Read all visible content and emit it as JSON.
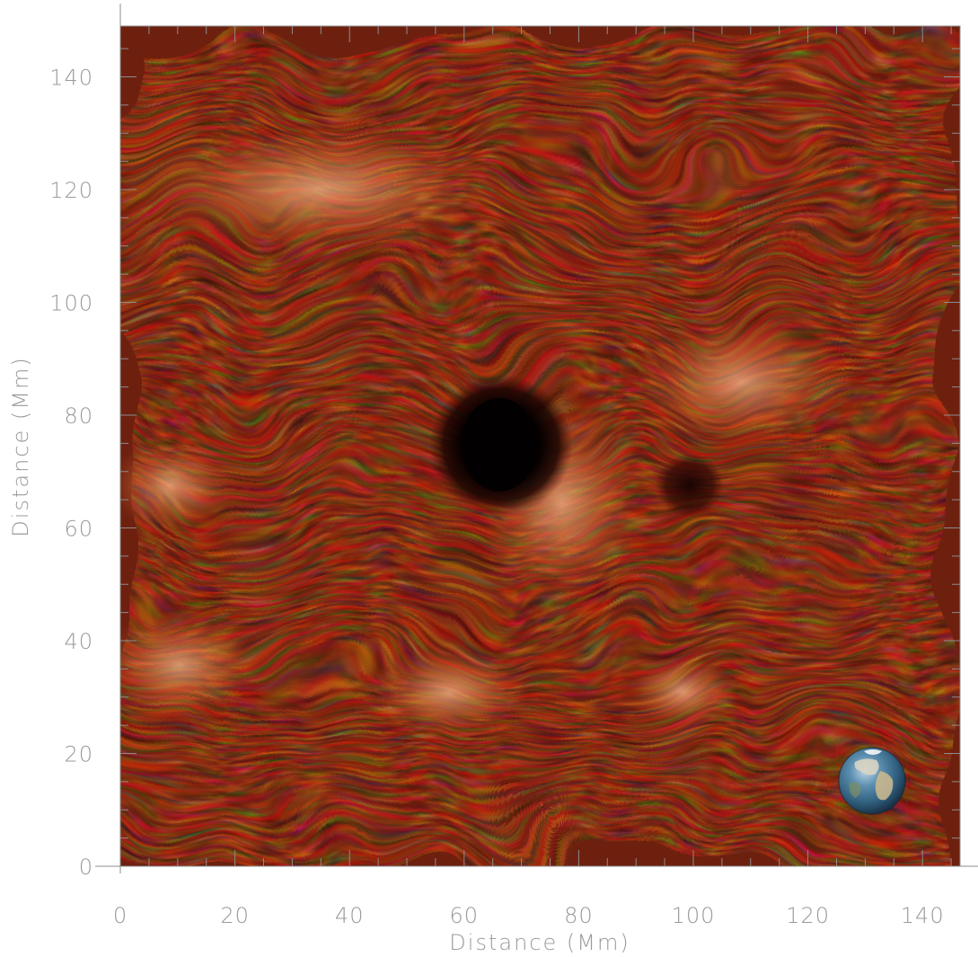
{
  "figure": {
    "x_axis": {
      "label": "Distance (Mm)",
      "range": [
        0,
        146.5
      ],
      "major_ticks": [
        "0",
        "20",
        "40",
        "60",
        "80",
        "100",
        "120",
        "140"
      ]
    },
    "y_axis": {
      "label": "Distance (Mm)",
      "range": [
        0,
        149
      ],
      "major_ticks": [
        "0",
        "20",
        "40",
        "60",
        "80",
        "100",
        "120",
        "140"
      ]
    },
    "image": {
      "subject": "solar chromosphere active region with sunspot and fibrils",
      "colormap": [
        "#000000",
        "#3a0b05",
        "#7a2412",
        "#b44a22",
        "#e07a3c",
        "#f7c795",
        "#ffffff"
      ]
    },
    "inset": {
      "subject": "earth-icon"
    }
  },
  "chart_data": {
    "type": "heatmap",
    "xlabel": "Distance (Mm)",
    "ylabel": "Distance (Mm)",
    "xlim": [
      0,
      146.5
    ],
    "ylim": [
      0,
      149
    ],
    "x_ticks": [
      0,
      20,
      40,
      60,
      80,
      100,
      120,
      140
    ],
    "y_ticks": [
      0,
      20,
      40,
      60,
      80,
      100,
      120,
      140
    ],
    "features": [
      {
        "name": "sunspot umbra",
        "x": 66,
        "y": 75
      },
      {
        "name": "pore",
        "x": 99,
        "y": 68
      },
      {
        "name": "Earth",
        "x": 131,
        "y": 15
      }
    ]
  }
}
